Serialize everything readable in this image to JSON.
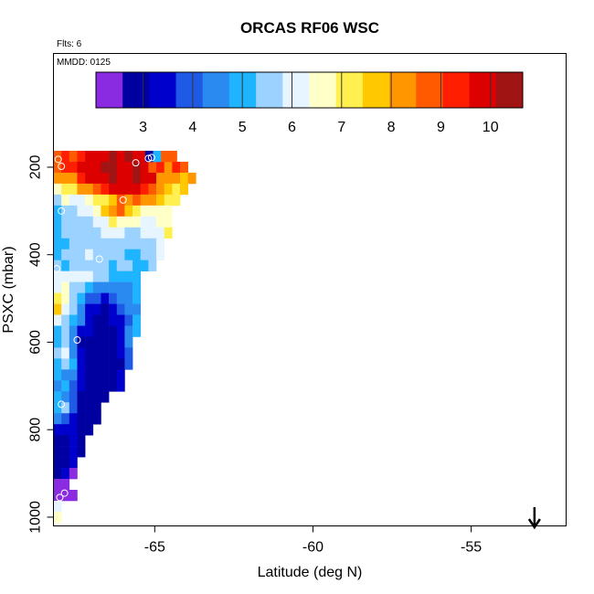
{
  "chart_data": {
    "type": "heatmap",
    "title": "ORCAS RF06 WSC",
    "flights_label": "Flts: 6",
    "date_label": "MMDD: 0125",
    "xlabel": "Latitude (deg N)",
    "ylabel": "PSXC (mbar)",
    "xlim": [
      -68.2,
      -52.0
    ],
    "ylim": [
      1020,
      -60
    ],
    "x_ticks": [
      {
        "value": -65,
        "label": "-65"
      },
      {
        "value": -60,
        "label": "-60"
      },
      {
        "value": -55,
        "label": "-55"
      }
    ],
    "y_ticks": [
      {
        "value": 200,
        "label": "200"
      },
      {
        "value": 400,
        "label": "400"
      },
      {
        "value": 600,
        "label": "600"
      },
      {
        "value": 800,
        "label": "800"
      },
      {
        "value": 1000,
        "label": "1000"
      }
    ],
    "colorbar": {
      "range": [
        2.05,
        10.65
      ],
      "ticks": [
        3,
        4,
        5,
        6,
        7,
        8,
        9,
        10
      ],
      "tick_labels": [
        "3",
        "4",
        "5",
        "6",
        "7",
        "8",
        "9",
        "10"
      ],
      "colors": [
        "#8A2BE2",
        "#0000A0",
        "#0000CD",
        "#1E5AE6",
        "#2B8AF0",
        "#1EB4FF",
        "#9BD2FF",
        "#E6F5FF",
        "#FFFFC8",
        "#FFF050",
        "#FFC800",
        "#FF9600",
        "#FF5A00",
        "#FF1E00",
        "#DC0000",
        "#A01414"
      ]
    },
    "cell_width_deg": 0.25,
    "cell_height_mbar": 25,
    "grid_rows": [
      {
        "p": 175,
        "lat0": -68.2,
        "values": [
          9.0,
          9.2,
          8.6,
          9.5,
          9.6,
          9.8,
          10.0,
          10.2,
          10.1,
          10.3,
          10.0,
          10.1
        ]
      },
      {
        "p": 200,
        "lat0": -68.2,
        "values": [
          8.8,
          9.5,
          9.2,
          9.8,
          10.0,
          10.1,
          10.2,
          10.3,
          10.0,
          10.1,
          10.2,
          10.0,
          9.0,
          9.3,
          8.5,
          9.4,
          8.7
        ]
      },
      {
        "p": 225,
        "lat0": -68.2,
        "values": [
          8.1,
          8.3,
          8.5,
          9.3,
          9.7,
          10.0,
          10.1,
          10.2,
          10.0,
          10.1,
          10.2,
          10.1,
          9.8,
          8.5,
          8.2,
          8.0,
          7.9,
          8.1
        ]
      },
      {
        "p": 250,
        "lat0": -68.2,
        "values": [
          6.8,
          7.0,
          7.3,
          8.0,
          8.5,
          8.8,
          9.2,
          9.6,
          9.9,
          10.0,
          10.1,
          9.5,
          8.6,
          8.0,
          7.5,
          7.2,
          7.5
        ]
      },
      {
        "p": 275,
        "lat0": -68.2,
        "values": [
          5.4,
          6.6,
          6.3,
          6.1,
          6.4,
          7.0,
          7.4,
          7.9,
          8.6,
          8.2,
          8.7,
          8.4,
          8.0,
          7.6,
          7.4,
          7.3
        ]
      },
      {
        "p": 300,
        "lat0": -68.2,
        "values": [
          5.2,
          5.5,
          5.8,
          6.2,
          6.3,
          6.5,
          7.6,
          8.2,
          8.6,
          7.6,
          7.2,
          6.8,
          6.6,
          6.5,
          6.6
        ]
      },
      {
        "p": 325,
        "lat0": -68.2,
        "values": [
          5.2,
          5.4,
          5.6,
          5.8,
          5.6,
          6.0,
          6.2,
          7.2,
          6.8,
          6.6,
          6.4,
          6.3,
          6.2,
          6.4,
          6.8
        ]
      },
      {
        "p": 350,
        "lat0": -68.2,
        "values": [
          5.1,
          5.3,
          5.5,
          5.4,
          5.6,
          5.8,
          5.9,
          6.0,
          5.9,
          5.7,
          5.8,
          5.9,
          6.0,
          6.1,
          6.9
        ]
      },
      {
        "p": 375,
        "lat0": -68.2,
        "values": [
          5.0,
          5.2,
          5.4,
          5.6,
          5.7,
          5.8,
          5.6,
          5.5,
          5.4,
          5.3,
          5.5,
          5.7,
          5.6,
          6.2
        ]
      },
      {
        "p": 400,
        "lat0": -68.2,
        "values": [
          5.2,
          5.4,
          5.6,
          5.8,
          5.9,
          5.6,
          5.5,
          5.3,
          5.3,
          5.1,
          5.2,
          5.3,
          5.5,
          6.0
        ]
      },
      {
        "p": 425,
        "lat0": -68.2,
        "values": [
          5.3,
          5.1,
          5.6,
          5.4,
          5.7,
          5.8,
          5.4,
          5.2,
          5.3,
          5.4,
          5.1,
          5.2,
          5.8
        ]
      },
      {
        "p": 450,
        "lat0": -68.2,
        "values": [
          5.9,
          6.1,
          6.2,
          6.3,
          6.0,
          5.8,
          5.3,
          5.1,
          5.0,
          5.1,
          5.0
        ]
      },
      {
        "p": 475,
        "lat0": -68.2,
        "values": [
          6.2,
          6.4,
          5.8,
          5.5,
          5.0,
          4.6,
          4.4,
          4.2,
          4.3,
          4.5,
          5.1
        ]
      },
      {
        "p": 500,
        "lat0": -68.2,
        "values": [
          7.3,
          6.4,
          5.7,
          4.8,
          4.0,
          3.7,
          3.5,
          3.8,
          4.2,
          4.6,
          5.1
        ]
      },
      {
        "p": 525,
        "lat0": -68.2,
        "values": [
          7.5,
          5.9,
          5.4,
          4.6,
          3.6,
          3.3,
          3.1,
          3.4,
          3.8,
          4.3,
          4.7
        ]
      },
      {
        "p": 550,
        "lat0": -68.2,
        "values": [
          6.3,
          5.6,
          5.1,
          4.3,
          3.4,
          3.1,
          3.0,
          3.2,
          3.6,
          4.1,
          5.1
        ]
      },
      {
        "p": 575,
        "lat0": -68.2,
        "values": [
          5.2,
          5.4,
          4.6,
          3.5,
          3.2,
          2.9,
          2.8,
          3.0,
          3.4,
          4.3,
          5.0
        ]
      },
      {
        "p": 600,
        "lat0": -68.2,
        "values": [
          5.1,
          5.7,
          4.4,
          3.1,
          2.9,
          2.8,
          2.8,
          2.9,
          3.3,
          4.2
        ]
      },
      {
        "p": 625,
        "lat0": -68.2,
        "values": [
          5.8,
          6.0,
          4.2,
          3.3,
          3.0,
          2.8,
          2.8,
          2.9,
          3.2,
          4.1
        ]
      },
      {
        "p": 650,
        "lat0": -68.2,
        "values": [
          5.0,
          5.5,
          4.8,
          3.6,
          3.1,
          2.9,
          2.8,
          2.9,
          3.1,
          3.8
        ]
      },
      {
        "p": 675,
        "lat0": -68.2,
        "values": [
          5.0,
          4.6,
          4.3,
          3.4,
          3.0,
          2.8,
          2.8,
          2.9,
          3.6
        ]
      },
      {
        "p": 700,
        "lat0": -68.2,
        "values": [
          4.5,
          5.2,
          4.1,
          3.2,
          2.9,
          2.8,
          2.8,
          3.0,
          3.5
        ]
      },
      {
        "p": 725,
        "lat0": -68.2,
        "values": [
          5.0,
          4.4,
          3.8,
          3.0,
          2.9,
          2.8,
          3.1
        ]
      },
      {
        "p": 750,
        "lat0": -68.2,
        "values": [
          4.8,
          5.4,
          3.7,
          3.1,
          2.9,
          2.8
        ]
      },
      {
        "p": 775,
        "lat0": -68.2,
        "values": [
          4.2,
          3.9,
          3.5,
          3.0,
          2.9,
          3.0
        ]
      },
      {
        "p": 800,
        "lat0": -68.2,
        "values": [
          3.5,
          3.6,
          3.3,
          3.1,
          2.9
        ]
      },
      {
        "p": 825,
        "lat0": -68.2,
        "values": [
          3.0,
          3.1,
          3.2,
          3.0
        ]
      },
      {
        "p": 850,
        "lat0": -68.2,
        "values": [
          2.9,
          3.0,
          3.2,
          3.1
        ]
      },
      {
        "p": 875,
        "lat0": -68.2,
        "values": [
          3.0,
          3.1,
          3.3
        ]
      },
      {
        "p": 900,
        "lat0": -68.2,
        "values": [
          2.8,
          3.2,
          2.5
        ]
      },
      {
        "p": 925,
        "lat0": -68.2,
        "values": [
          2.5,
          2.5
        ]
      },
      {
        "p": 950,
        "lat0": -68.2,
        "values": [
          2.3,
          2.2,
          2.4
        ]
      },
      {
        "p": 975,
        "lat0": -68.2,
        "values": [
          6.3
        ]
      },
      {
        "p": 1000,
        "lat0": -68.2,
        "values": [
          6.5
        ]
      }
    ],
    "extra_cells": [
      {
        "lat": -65.3,
        "p": 175,
        "v": 2.8
      },
      {
        "lat": -65.05,
        "p": 175,
        "v": 5.0
      },
      {
        "lat": -64.8,
        "p": 175,
        "v": 8.6
      },
      {
        "lat": -64.55,
        "p": 175,
        "v": 8.9
      }
    ],
    "markers": [
      {
        "lat": -68.05,
        "p": 182
      },
      {
        "lat": -67.95,
        "p": 198
      },
      {
        "lat": -65.2,
        "p": 180
      },
      {
        "lat": -65.1,
        "p": 178
      },
      {
        "lat": -64.15,
        "p": 178
      },
      {
        "lat": -65.6,
        "p": 190
      },
      {
        "lat": -66.0,
        "p": 275
      },
      {
        "lat": -67.95,
        "p": 300
      },
      {
        "lat": -68.1,
        "p": 432
      },
      {
        "lat": -66.75,
        "p": 410
      },
      {
        "lat": -67.45,
        "p": 595
      },
      {
        "lat": -67.95,
        "p": 742
      },
      {
        "lat": -67.85,
        "p": 945
      },
      {
        "lat": -68.0,
        "p": 955
      }
    ],
    "arrow": {
      "lat": -53.0,
      "label": "down-arrow"
    }
  }
}
